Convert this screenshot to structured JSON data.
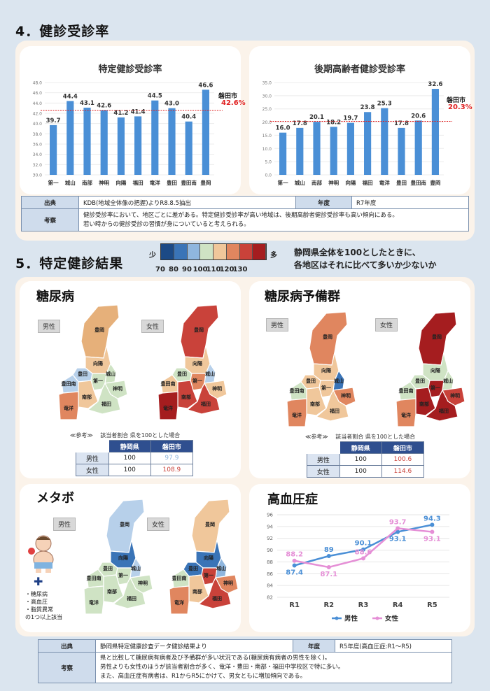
{
  "sec4": {
    "title": "4．健診受診率"
  },
  "chart1": {
    "title": "特定健診受診率",
    "callout_name": "磐田市",
    "callout_value": "42.6%"
  },
  "chart2": {
    "title": "後期高齢者健診受診率",
    "callout_name": "磐田市",
    "callout_value": "20.3%"
  },
  "chart_data": [
    {
      "type": "bar",
      "title": "特定健診受診率",
      "categories": [
        "第一",
        "城山",
        "南部",
        "神明",
        "向陽",
        "福田",
        "竜洋",
        "豊田",
        "豊田南",
        "豊岡"
      ],
      "values": [
        39.7,
        44.4,
        43.1,
        42.6,
        41.2,
        41.4,
        44.5,
        43.0,
        40.4,
        46.6
      ],
      "value_labels": [
        "39.7",
        "44.4",
        "43.1",
        "42.6",
        "41.2",
        "41.4",
        "44.5",
        "43.0",
        "40.4",
        "46.6"
      ],
      "ylim": [
        30.0,
        48.0
      ],
      "yticks": [
        "30.0",
        "32.0",
        "34.0",
        "36.0",
        "38.0",
        "40.0",
        "42.0",
        "44.0",
        "46.0",
        "48.0"
      ],
      "reference_line": 42.6,
      "color": "#4a8fd6"
    },
    {
      "type": "bar",
      "title": "後期高齢者健診受診率",
      "categories": [
        "第一",
        "城山",
        "南部",
        "神明",
        "向陽",
        "福田",
        "竜洋",
        "豊田",
        "豊田南",
        "豊岡"
      ],
      "values": [
        16.0,
        17.8,
        20.1,
        18.2,
        19.7,
        23.8,
        25.3,
        17.8,
        20.6,
        32.6
      ],
      "value_labels": [
        "16.0",
        "17.8",
        "20.1",
        "18.2",
        "19.7",
        "23.8",
        "25.3",
        "17.8",
        "20.6",
        "32.6"
      ],
      "ylim": [
        0.0,
        35.0
      ],
      "yticks": [
        "0.0",
        "5.0",
        "10.0",
        "15.0",
        "20.0",
        "25.0",
        "30.0",
        "35.0"
      ],
      "reference_line": 20.3,
      "color": "#4a8fd6"
    },
    {
      "type": "line",
      "title": "高血圧症",
      "categories": [
        "R1",
        "R2",
        "R3",
        "R4",
        "R5"
      ],
      "ylim": [
        82,
        96
      ],
      "yticks": [
        "82",
        "84",
        "86",
        "88",
        "90",
        "92",
        "94",
        "96"
      ],
      "series": [
        {
          "name": "男性",
          "values": [
            87.4,
            89,
            90.1,
            93.1,
            94.3
          ],
          "labels": [
            "87.4",
            "89",
            "90.1",
            "93.1",
            "94.3"
          ],
          "color": "#4a8fd6"
        },
        {
          "name": "女性",
          "values": [
            88.2,
            87.1,
            88.6,
            93.7,
            93.1
          ],
          "labels": [
            "88.2",
            "87.1",
            "88.6",
            "93.7",
            "93.1"
          ],
          "color": "#e58fd6"
        }
      ],
      "legend": "bottom"
    }
  ],
  "src1": {
    "l1": "出典",
    "v1": "KDB(地域全体像の把握)よりR8.8.5抽出",
    "l2": "年度",
    "v2": "R7年度",
    "l3": "考察",
    "v3a": "健診受診率において、地区ごとに差がある。特定健診受診率が高い地域は、後期高齢者健診受診率も高い傾向にある。",
    "v3b": "若い時からの健診受診の習慣が身についていると考えられる。"
  },
  "sec5": {
    "title": "5．特定健診結果",
    "few": "少",
    "many": "多",
    "scale": [
      "70",
      "80",
      "90",
      "100",
      "110",
      "120",
      "130"
    ],
    "scale_colors": [
      "#1c4a86",
      "#3a74b7",
      "#8fb6de",
      "#cfe3c4",
      "#f0c79b",
      "#e0865f",
      "#c9423a",
      "#a51d1f"
    ],
    "desc1": "静岡県全体を100としたときに、",
    "desc2": "各地区はそれに比べて多いか少ないか"
  },
  "tanyo": {
    "title": "糖尿病",
    "male": "男性",
    "female": "女性",
    "ref_note": "≪参考≫　 該当者割合 県を100とした場合",
    "col1": "静岡県",
    "col2": "磐田市",
    "r1": "男性",
    "r1a": "100",
    "r1b": "97.9",
    "r2": "女性",
    "r2a": "100",
    "r2b": "108.9",
    "r1b_color": "#8fb6de",
    "r2b_color": "#c9423a"
  },
  "yobi": {
    "title": "糖尿病予備群",
    "male": "男性",
    "female": "女性",
    "ref_note": "≪参考≫　 該当者割合 県を100とした場合",
    "col1": "静岡県",
    "col2": "磐田市",
    "r1": "男性",
    "r1a": "100",
    "r1b": "100.6",
    "r2": "女性",
    "r2a": "100",
    "r2b": "114.6",
    "r1b_color": "#c9423a",
    "r2b_color": "#c9423a"
  },
  "metabo": {
    "title": "メタボ",
    "male": "男性",
    "female": "女性",
    "plus": "✚",
    "n1": "・糖尿病",
    "n2": "・高血圧",
    "n3": "・脂質異常",
    "n4": "の1つ以上該当"
  },
  "hbp": {
    "title": "高血圧症",
    "leg_m": "男性",
    "leg_f": "女性"
  },
  "map_labels": {
    "toyooka": "豊岡",
    "koyo": "向陽",
    "toyoda": "豊田",
    "shiroyama": "城山",
    "toyodaminami": "豊田南",
    "daiichi": "第一",
    "shinmei": "神明",
    "nanbu": "南部",
    "ryuyo": "竜洋",
    "fukude": "福田"
  },
  "src2": {
    "l1": "出典",
    "v1": "静岡県特定健康診査データ健診結果より",
    "l2": "年度",
    "v2": "R5年度(高血圧症:R1～R5)",
    "l3": "考察",
    "v3a": "県と比較して糖尿病有病者及び予備群が多い状況である(糖尿病有病者の男性を除く)。",
    "v3b": "男性よりも女性のほうが該当者割合が多く、竜洋・豊田・南部・福田中学校区で特に多い。",
    "v3c": "また、高血圧症有病者は、R1からR5にかけて、男女ともに増加傾向である。"
  }
}
